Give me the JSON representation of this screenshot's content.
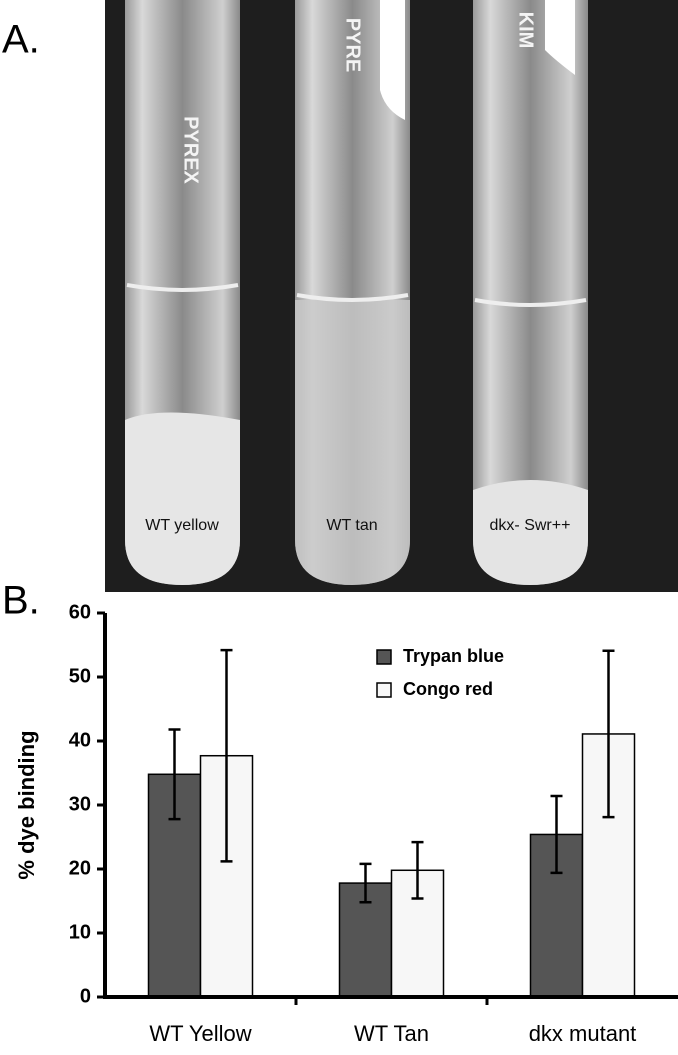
{
  "figure": {
    "panel_a_label": "A.",
    "panel_b_label": "B.",
    "tube_labels": [
      "WT yellow",
      "WT tan",
      "dkx- Swr++"
    ],
    "tube_markings": [
      "PYREX",
      "PYRE",
      "KIM"
    ]
  },
  "chart_data": {
    "type": "bar",
    "y_label": "% dye binding",
    "categories": [
      "WT Yellow",
      "WT Tan",
      "dkx mutant"
    ],
    "series": [
      {
        "name": "Trypan blue",
        "color": "#555555",
        "values": [
          34.8,
          17.8,
          25.4
        ],
        "errors": [
          7,
          3,
          6
        ]
      },
      {
        "name": "Congo red",
        "color": "#f7f7f7",
        "values": [
          37.7,
          19.8,
          41.1
        ],
        "errors": [
          16.5,
          4.4,
          13
        ]
      }
    ],
    "ylim": [
      0,
      60
    ],
    "yticks": [
      0,
      10,
      20,
      30,
      40,
      50,
      60
    ],
    "grid": false,
    "legend": "top-right"
  }
}
